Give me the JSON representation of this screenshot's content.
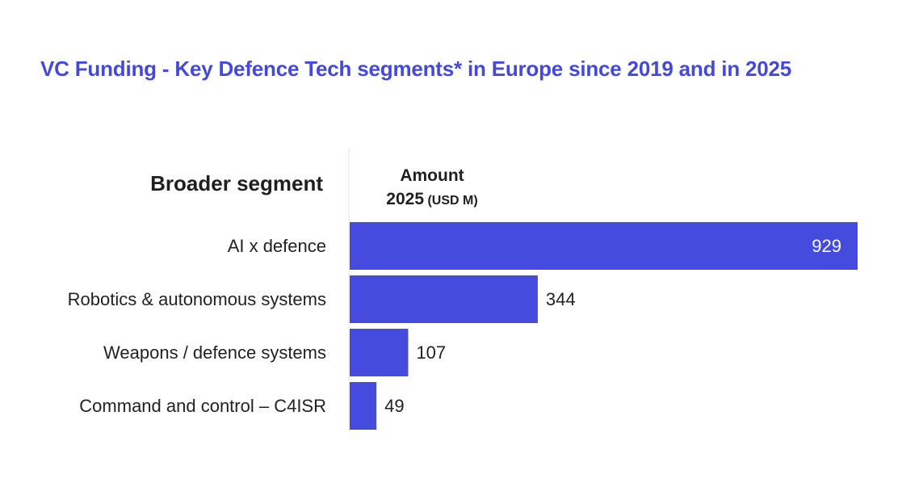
{
  "chart_data": {
    "type": "bar",
    "orientation": "horizontal",
    "title": "VC Funding - Key Defence Tech segments* in Europe since 2019 and in 2025",
    "category_header": "Broader segment",
    "value_header": {
      "line1": "Amount",
      "line2": "2025",
      "unit": "(USD M)"
    },
    "categories": [
      "AI x defence",
      "Robotics & autonomous systems",
      "Weapons / defence systems",
      "Command and control – C4ISR"
    ],
    "values": [
      929,
      344,
      107,
      49
    ],
    "xlim": [
      0,
      929
    ],
    "grid": false,
    "legend": "none",
    "bar_color": "#444bdd",
    "title_color": "#4449dd"
  }
}
